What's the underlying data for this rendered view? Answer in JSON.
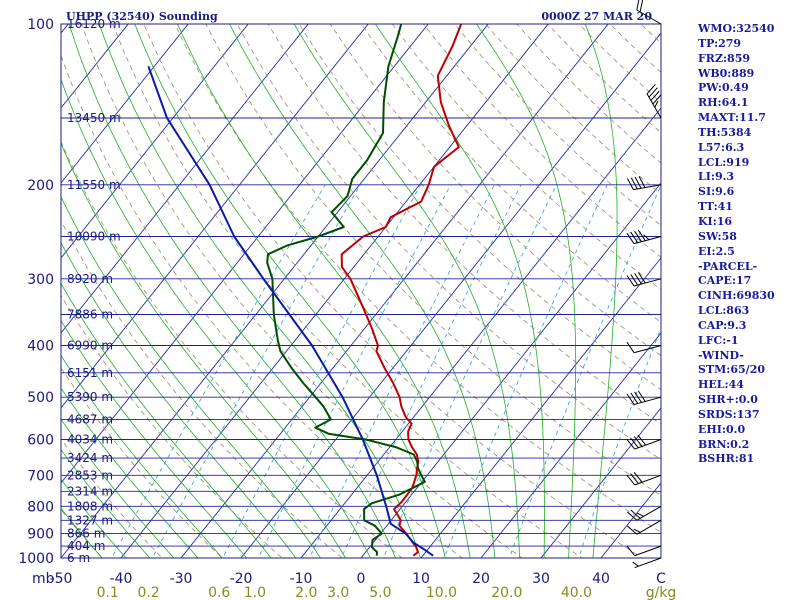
{
  "header": {
    "station_title": "UHPP (32540) Sounding",
    "valid_time": "0000Z 27 MAR 20"
  },
  "colors": {
    "frame": "#202080",
    "isobar": "#2020a0",
    "isotherm": "#1f2aa8",
    "dry_adiabat": "#9c8a6a",
    "moist_adiabat": "#22b022",
    "mixing_ratio": "#40a8d8",
    "temperature": "#c00000",
    "dewpoint": "#004d00",
    "parcel": "#0a1aa8",
    "barb": "#000000",
    "axis_text": "#1a1a80",
    "mixing_text": "#8a8a20"
  },
  "indices": [
    "WMO:32540",
    "TP:279",
    "FRZ:859",
    "WB0:889",
    "PW:0.49",
    "RH:64.1",
    "MAXT:11.7",
    "TH:5384",
    "L57:6.3",
    "LCL:919",
    "LI:9.3",
    "SI:9.6",
    "TT:41",
    "KI:16",
    "SW:58",
    "EI:2.5",
    "-PARCEL-",
    "CAPE:17",
    "CINH:69830",
    "LCL:863",
    "CAP:9.3",
    "LFC:-1",
    "-WIND-",
    "STM:65/20",
    "HEL:44",
    "SHR+:0.0",
    "SRDS:137",
    "EHI:0.0",
    "BRN:0.2",
    "BSHR:81"
  ],
  "chart_data": {
    "type": "line",
    "title": "UHPP (32540) Sounding",
    "subtitle": "0000Z 27 MAR 20",
    "xlabel": "",
    "ylabel": "mb",
    "xlim": [
      -50,
      50
    ],
    "ylim": [
      1000,
      100
    ],
    "y_scale": "log",
    "pressure_ticks": [
      100,
      200,
      300,
      400,
      500,
      600,
      700,
      800,
      900,
      1000
    ],
    "temp_ticks": [
      {
        "v": -50,
        "label": "-50"
      },
      {
        "v": -40,
        "label": "-40"
      },
      {
        "v": -30,
        "label": "-30"
      },
      {
        "v": -20,
        "label": "-20"
      },
      {
        "v": -10,
        "label": "-10"
      },
      {
        "v": 0,
        "label": "0"
      },
      {
        "v": 10,
        "label": "10"
      },
      {
        "v": 20,
        "label": "20"
      },
      {
        "v": 30,
        "label": "30"
      },
      {
        "v": 40,
        "label": "40"
      },
      {
        "v": 50,
        "label": "C"
      }
    ],
    "mb_label": "mb",
    "gkg_unit": "g/kg",
    "mixing_ratio_labels": [
      {
        "w": 0.1,
        "label": "0.1"
      },
      {
        "w": 0.2,
        "label": "0.2"
      },
      {
        "w": 0.6,
        "label": "0.6"
      },
      {
        "w": 1.0,
        "label": "1.0"
      },
      {
        "w": 2.0,
        "label": "2.0"
      },
      {
        "w": 3.0,
        "label": "3.0"
      },
      {
        "w": 5.0,
        "label": "5.0"
      },
      {
        "w": 10.0,
        "label": "10.0"
      },
      {
        "w": 20.0,
        "label": "20.0"
      },
      {
        "w": 40.0,
        "label": "40.0"
      }
    ],
    "height_labels": [
      {
        "p": 100,
        "label": "16120 m"
      },
      {
        "p": 150,
        "label": "13450 m"
      },
      {
        "p": 200,
        "label": "11550 m"
      },
      {
        "p": 250,
        "label": "10090 m"
      },
      {
        "p": 300,
        "label": "8920 m"
      },
      {
        "p": 350,
        "label": "7886 m"
      },
      {
        "p": 400,
        "label": "6990 m"
      },
      {
        "p": 450,
        "label": "6151 m"
      },
      {
        "p": 500,
        "label": "5390 m"
      },
      {
        "p": 550,
        "label": "4687 m"
      },
      {
        "p": 600,
        "label": "4034 m"
      },
      {
        "p": 650,
        "label": "3424 m"
      },
      {
        "p": 700,
        "label": "2853 m"
      },
      {
        "p": 750,
        "label": "2314 m"
      },
      {
        "p": 800,
        "label": "1808 m"
      },
      {
        "p": 850,
        "label": "1327 m"
      },
      {
        "p": 900,
        "label": "866 m"
      },
      {
        "p": 950,
        "label": "404 m"
      },
      {
        "p": 1000,
        "label": "6 m"
      }
    ],
    "series": [
      {
        "key": "temperature",
        "points": [
          [
            990,
            8.4
          ],
          [
            975,
            8.7
          ],
          [
            955,
            7.8
          ],
          [
            925,
            5.9
          ],
          [
            900,
            4.3
          ],
          [
            870,
            2.1
          ],
          [
            850,
            1.6
          ],
          [
            810,
            -1.0
          ],
          [
            785,
            -0.7
          ],
          [
            740,
            -0.8
          ],
          [
            700,
            -1.8
          ],
          [
            680,
            -2.6
          ],
          [
            660,
            -3.3
          ],
          [
            640,
            -4.5
          ],
          [
            620,
            -6.3
          ],
          [
            600,
            -7.9
          ],
          [
            580,
            -9.0
          ],
          [
            560,
            -9.5
          ],
          [
            545,
            -11.3
          ],
          [
            520,
            -13.5
          ],
          [
            500,
            -15.0
          ],
          [
            470,
            -18.0
          ],
          [
            440,
            -21.5
          ],
          [
            410,
            -25.0
          ],
          [
            400,
            -25.5
          ],
          [
            370,
            -29.0
          ],
          [
            340,
            -33.0
          ],
          [
            300,
            -39.0
          ],
          [
            285,
            -42.0
          ],
          [
            270,
            -43.7
          ],
          [
            250,
            -42.5
          ],
          [
            240,
            -40.0
          ],
          [
            230,
            -40.5
          ],
          [
            215,
            -37.5
          ],
          [
            200,
            -38.5
          ],
          [
            185,
            -40.0
          ],
          [
            170,
            -38.5
          ],
          [
            155,
            -43.0
          ],
          [
            140,
            -47.5
          ],
          [
            125,
            -51.5
          ],
          [
            110,
            -53.0
          ],
          [
            100,
            -54.5
          ]
        ]
      },
      {
        "key": "dewpoint",
        "points": [
          [
            990,
            2.3
          ],
          [
            975,
            1.9
          ],
          [
            955,
            0.4
          ],
          [
            925,
            -0.5
          ],
          [
            900,
            0.2
          ],
          [
            870,
            -2.0
          ],
          [
            850,
            -4.5
          ],
          [
            810,
            -6.0
          ],
          [
            790,
            -5.5
          ],
          [
            760,
            -2.0
          ],
          [
            720,
            0.5
          ],
          [
            700,
            -1.0
          ],
          [
            680,
            -2.4
          ],
          [
            660,
            -3.5
          ],
          [
            640,
            -5.0
          ],
          [
            620,
            -9.0
          ],
          [
            600,
            -15.0
          ],
          [
            585,
            -22.0
          ],
          [
            570,
            -25.0
          ],
          [
            550,
            -23.5
          ],
          [
            520,
            -26.5
          ],
          [
            500,
            -29.0
          ],
          [
            470,
            -33.0
          ],
          [
            440,
            -37.0
          ],
          [
            410,
            -41.0
          ],
          [
            390,
            -43.0
          ],
          [
            350,
            -47.0
          ],
          [
            300,
            -52.0
          ],
          [
            280,
            -55.0
          ],
          [
            270,
            -56.0
          ],
          [
            260,
            -54.0
          ],
          [
            250,
            -50.0
          ],
          [
            240,
            -47.0
          ],
          [
            225,
            -51.0
          ],
          [
            210,
            -50.5
          ],
          [
            195,
            -52.0
          ],
          [
            180,
            -52.0
          ],
          [
            160,
            -53.0
          ],
          [
            140,
            -57.0
          ],
          [
            120,
            -61.0
          ],
          [
            105,
            -63.5
          ],
          [
            100,
            -64.5
          ]
        ]
      },
      {
        "key": "parcel",
        "points": [
          [
            990,
            11.7
          ],
          [
            965,
            9.5
          ],
          [
            935,
            6.6
          ],
          [
            900,
            4.2
          ],
          [
            863,
            0.4
          ],
          [
            800,
            -2.7
          ],
          [
            700,
            -8.4
          ],
          [
            600,
            -15.5
          ],
          [
            500,
            -24.5
          ],
          [
            400,
            -36.5
          ],
          [
            300,
            -53.5
          ],
          [
            250,
            -64.0
          ],
          [
            200,
            -75.0
          ],
          [
            150,
            -91.0
          ],
          [
            120,
            -101.0
          ]
        ]
      }
    ],
    "wind_barbs": [
      {
        "p": 1000,
        "speed_kt": 5,
        "dir": 250
      },
      {
        "p": 950,
        "speed_kt": 10,
        "dir": 250
      },
      {
        "p": 850,
        "speed_kt": 15,
        "dir": 240
      },
      {
        "p": 800,
        "speed_kt": 25,
        "dir": 240
      },
      {
        "p": 700,
        "speed_kt": 30,
        "dir": 250
      },
      {
        "p": 600,
        "speed_kt": 40,
        "dir": 250
      },
      {
        "p": 500,
        "speed_kt": 40,
        "dir": 255
      },
      {
        "p": 400,
        "speed_kt": 50,
        "dir": 255
      },
      {
        "p": 300,
        "speed_kt": 40,
        "dir": 255
      },
      {
        "p": 250,
        "speed_kt": 45,
        "dir": 255
      },
      {
        "p": 200,
        "speed_kt": 40,
        "dir": 260
      },
      {
        "p": 150,
        "speed_kt": 45,
        "dir": 330
      },
      {
        "p": 100,
        "speed_kt": 20,
        "dir": 300
      }
    ]
  }
}
